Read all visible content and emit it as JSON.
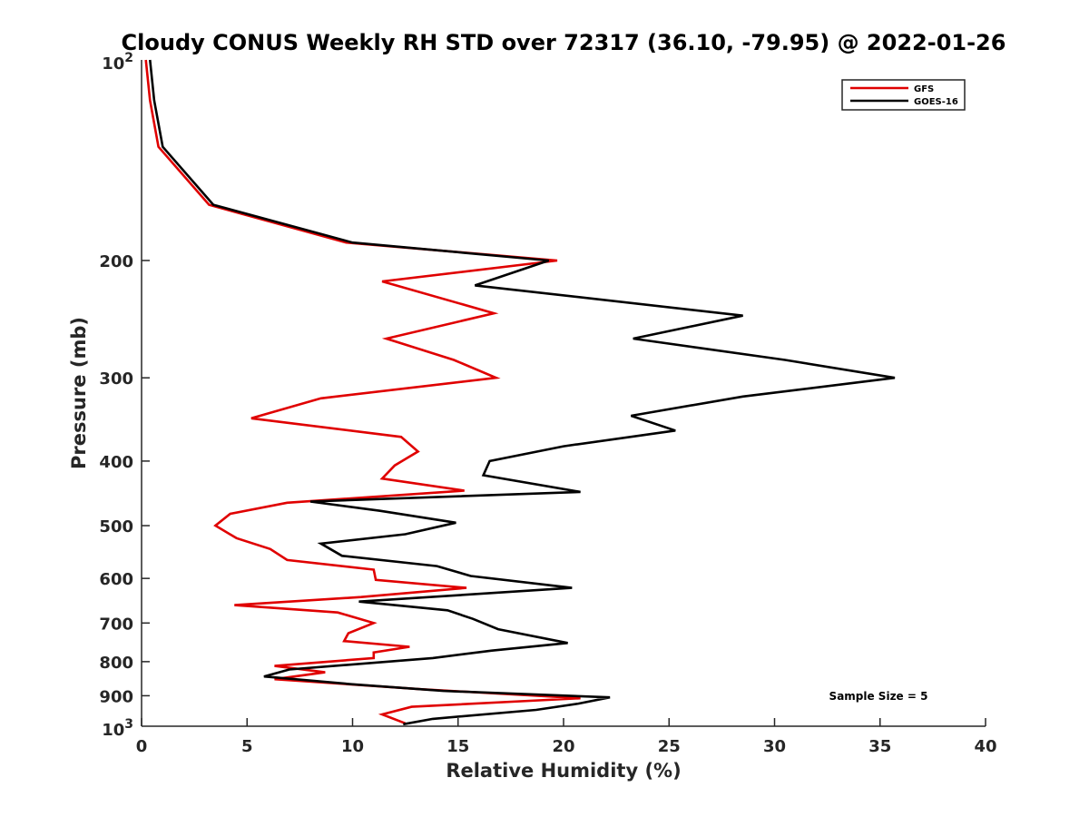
{
  "chart_data": {
    "type": "line",
    "title": "Cloudy CONUS Weekly RH STD over 72317 (36.10, -79.95) @ 2022-01-26",
    "xlabel": "Relative Humidity (%)",
    "ylabel": "Pressure (mb)",
    "xlim": [
      0,
      40
    ],
    "ylim": [
      100,
      1000
    ],
    "yscale": "log",
    "y_reversed": true,
    "x_ticks": [
      "0",
      "5",
      "10",
      "15",
      "20",
      "25",
      "30",
      "35",
      "40"
    ],
    "y_ticks": [
      "200",
      "300",
      "400",
      "500",
      "600",
      "700",
      "800",
      "900"
    ],
    "y_tick_values": [
      200,
      300,
      400,
      500,
      600,
      700,
      800,
      900
    ],
    "y_limit_labels": {
      "top_base": "10",
      "top_exp": "2",
      "bottom_base": "10",
      "bottom_exp": "3"
    },
    "grid": false,
    "legend_position": "top-right",
    "annotation": "Sample Size = 5",
    "series": [
      {
        "name": "GFS",
        "color": "#e00000",
        "points": [
          [
            0.2,
            100
          ],
          [
            0.4,
            115
          ],
          [
            0.8,
            135
          ],
          [
            3.2,
            165
          ],
          [
            9.7,
            188
          ],
          [
            19.7,
            200
          ],
          [
            11.4,
            215
          ],
          [
            16.7,
            240
          ],
          [
            11.6,
            262
          ],
          [
            14.8,
            282
          ],
          [
            16.8,
            300
          ],
          [
            8.5,
            322
          ],
          [
            5.2,
            345
          ],
          [
            12.3,
            368
          ],
          [
            13.1,
            387
          ],
          [
            12.0,
            406
          ],
          [
            11.4,
            425
          ],
          [
            15.3,
            443
          ],
          [
            6.9,
            462
          ],
          [
            4.2,
            480
          ],
          [
            3.5,
            500
          ],
          [
            4.5,
            522
          ],
          [
            6.1,
            542
          ],
          [
            6.9,
            563
          ],
          [
            11.0,
            582
          ],
          [
            11.1,
            603
          ],
          [
            15.4,
            620
          ],
          [
            10.4,
            640
          ],
          [
            4.4,
            658
          ],
          [
            9.3,
            675
          ],
          [
            11.0,
            700
          ],
          [
            9.8,
            725
          ],
          [
            9.6,
            745
          ],
          [
            12.7,
            760
          ],
          [
            11.0,
            775
          ],
          [
            11.0,
            790
          ],
          [
            6.3,
            812
          ],
          [
            8.7,
            830
          ],
          [
            6.3,
            850
          ],
          [
            13.3,
            880
          ],
          [
            20.8,
            908
          ],
          [
            12.8,
            935
          ],
          [
            11.4,
            960
          ],
          [
            12.5,
            990
          ]
        ]
      },
      {
        "name": "GOES-16",
        "color": "#000000",
        "points": [
          [
            0.4,
            100
          ],
          [
            0.6,
            115
          ],
          [
            1.0,
            135
          ],
          [
            3.4,
            165
          ],
          [
            10.0,
            188
          ],
          [
            19.3,
            200
          ],
          [
            15.8,
            218
          ],
          [
            28.5,
            242
          ],
          [
            23.3,
            262
          ],
          [
            30.5,
            282
          ],
          [
            35.7,
            300
          ],
          [
            28.5,
            320
          ],
          [
            23.2,
            342
          ],
          [
            25.3,
            360
          ],
          [
            20.0,
            380
          ],
          [
            16.5,
            400
          ],
          [
            16.2,
            420
          ],
          [
            20.8,
            445
          ],
          [
            8.0,
            460
          ],
          [
            11.3,
            475
          ],
          [
            14.9,
            495
          ],
          [
            12.5,
            515
          ],
          [
            8.5,
            532
          ],
          [
            9.5,
            555
          ],
          [
            14.0,
            575
          ],
          [
            15.6,
            595
          ],
          [
            20.4,
            620
          ],
          [
            10.3,
            650
          ],
          [
            14.5,
            670
          ],
          [
            15.7,
            690
          ],
          [
            16.9,
            715
          ],
          [
            20.2,
            750
          ],
          [
            16.6,
            770
          ],
          [
            13.8,
            790
          ],
          [
            7.0,
            822
          ],
          [
            5.8,
            842
          ],
          [
            10.0,
            865
          ],
          [
            14.3,
            885
          ],
          [
            22.2,
            905
          ],
          [
            20.7,
            925
          ],
          [
            18.7,
            945
          ],
          [
            13.8,
            975
          ],
          [
            12.4,
            993
          ]
        ]
      }
    ]
  }
}
